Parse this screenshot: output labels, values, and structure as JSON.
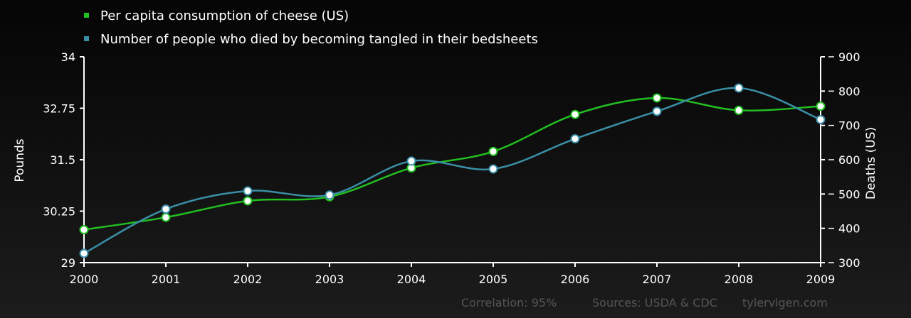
{
  "chart_data": {
    "type": "line",
    "x": [
      2000,
      2001,
      2002,
      2003,
      2004,
      2005,
      2006,
      2007,
      2008,
      2009
    ],
    "x_tick_labels": [
      "2000",
      "2001",
      "2002",
      "2003",
      "2004",
      "2005",
      "2006",
      "2007",
      "2008",
      "2009"
    ],
    "series": [
      {
        "name": "Per capita consumption of cheese (US)",
        "axis": "left",
        "color": "#22c021",
        "values": [
          29.8,
          30.1,
          30.5,
          30.6,
          31.3,
          31.7,
          32.6,
          33.0,
          32.7,
          32.8
        ]
      },
      {
        "name": "Number of people who died by becoming tangled in their bedsheets",
        "axis": "right",
        "color": "#3a8fa6",
        "values": [
          327,
          456,
          509,
          497,
          596,
          573,
          661,
          741,
          809,
          717
        ]
      }
    ],
    "y_left": {
      "label": "Pounds",
      "range": [
        29,
        34
      ],
      "tick_values": [
        29,
        30.25,
        31.5,
        32.75,
        34
      ],
      "tick_labels": [
        "29",
        "30.25",
        "31.5",
        "32.75",
        "34"
      ]
    },
    "y_right": {
      "label": "Deaths (US)",
      "range": [
        300,
        900
      ],
      "tick_values": [
        300,
        400,
        500,
        600,
        700,
        800,
        900
      ],
      "tick_labels": [
        "300",
        "400",
        "500",
        "600",
        "700",
        "800",
        "900"
      ]
    },
    "grid": false,
    "legend_position": "top-left"
  },
  "footer": {
    "correlation": "Correlation: 95%",
    "sources": "Sources: USDA & CDC",
    "site": "tylervigen.com"
  }
}
